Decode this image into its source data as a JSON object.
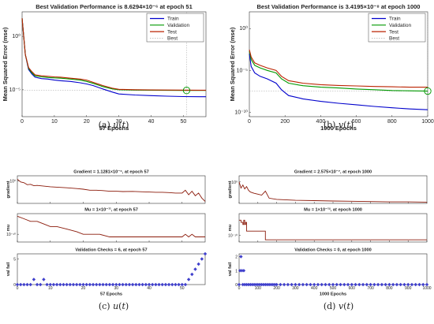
{
  "captions": [
    {
      "label": "(a)",
      "fn": "u",
      "arg": "t"
    },
    {
      "label": "(b)",
      "fn": "v",
      "arg": "t"
    },
    {
      "label": "(c)",
      "fn": "u",
      "arg": "t"
    },
    {
      "label": "(d)",
      "fn": "v",
      "arg": "t"
    }
  ],
  "colors": {
    "train": "#0000cc",
    "validation": "#009900",
    "test": "#bb2200",
    "best": "#009900",
    "best_line": "#a0a0a0",
    "gradient": "#8b1a0a",
    "checks": "#4040cc"
  },
  "chart_data": [
    {
      "id": "perf_u",
      "type": "line",
      "title": "Best Validation Performance is 8.6294×10⁻⁶ at epoch 51",
      "xlabel": "57 Epochs",
      "ylabel": "Mean Squared Error  (mse)",
      "yscale": "log",
      "xlim": [
        0,
        57
      ],
      "ylim": [
        3e-08,
        200
      ],
      "xticks": [
        0,
        10,
        20,
        30,
        40,
        50
      ],
      "yticks": [
        {
          "v": 1,
          "l": "10⁰"
        },
        {
          "v": 1e-05,
          "l": "10⁻⁵"
        }
      ],
      "legend": {
        "position": "top-right",
        "entries": [
          "Train",
          "Validation",
          "Test",
          "Best"
        ]
      },
      "best": {
        "x": 51,
        "y": 8.6294e-06
      },
      "series": [
        {
          "name": "Train",
          "color_key": "train",
          "x": [
            0,
            1,
            2,
            3,
            4,
            6,
            8,
            10,
            12,
            15,
            18,
            20,
            22,
            25,
            28,
            30,
            35,
            40,
            45,
            50,
            55,
            57
          ],
          "y": [
            50,
            0.02,
            0.0008,
            0.0003,
            0.00015,
            0.00011,
            0.0001,
            8e-05,
            7e-05,
            6e-05,
            4.5e-05,
            3.5e-05,
            2.5e-05,
            1.2e-05,
            6e-06,
            4e-06,
            3.2e-06,
            2.8e-06,
            2.5e-06,
            2.3e-06,
            2.2e-06,
            2.2e-06
          ]
        },
        {
          "name": "Validation",
          "color_key": "validation",
          "x": [
            0,
            1,
            2,
            3,
            4,
            6,
            8,
            10,
            12,
            15,
            18,
            20,
            22,
            25,
            28,
            30,
            35,
            40,
            45,
            50,
            51,
            55,
            57
          ],
          "y": [
            50,
            0.02,
            0.001,
            0.0004,
            0.0002,
            0.00016,
            0.00014,
            0.00013,
            0.00012,
            0.0001,
            8e-05,
            6e-05,
            4e-05,
            2e-05,
            1.2e-05,
            1e-05,
            9.2e-06,
            9e-06,
            8.8e-06,
            8.7e-06,
            8.6e-06,
            8.6e-06,
            8.6e-06
          ]
        },
        {
          "name": "Test",
          "color_key": "test",
          "x": [
            0,
            1,
            2,
            3,
            4,
            6,
            8,
            10,
            12,
            15,
            18,
            20,
            22,
            25,
            28,
            30,
            35,
            40,
            45,
            50,
            55,
            57
          ],
          "y": [
            50,
            0.02,
            0.0012,
            0.0005,
            0.00025,
            0.0002,
            0.00018,
            0.00016,
            0.00015,
            0.00012,
            0.0001,
            8e-05,
            5e-05,
            2.5e-05,
            1.4e-05,
            1.1e-05,
            1e-05,
            9.6e-06,
            9.4e-06,
            9.2e-06,
            9.1e-06,
            9.1e-06
          ]
        }
      ]
    },
    {
      "id": "perf_v",
      "type": "line",
      "title": "Best Validation Performance is 3.4195×10⁻⁸ at epoch 1000",
      "xlabel": "1000 Epochs",
      "ylabel": "Mean Squared Error  (mse)",
      "yscale": "log",
      "xlim": [
        0,
        1000
      ],
      "ylim": [
        3e-11,
        100
      ],
      "xticks": [
        0,
        200,
        400,
        600,
        800,
        1000
      ],
      "yticks": [
        {
          "v": 1,
          "l": "10⁰"
        },
        {
          "v": 1e-05,
          "l": "10⁻⁵"
        },
        {
          "v": 1e-10,
          "l": "10⁻¹⁰"
        }
      ],
      "legend": {
        "position": "top-right",
        "entries": [
          "Train",
          "Validation",
          "Test",
          "Best"
        ]
      },
      "best": {
        "x": 1000,
        "y": 3.4195e-08
      },
      "series": [
        {
          "name": "Train",
          "color_key": "train",
          "x": [
            0,
            10,
            30,
            60,
            100,
            150,
            180,
            220,
            300,
            400,
            500,
            600,
            700,
            800,
            900,
            1000
          ],
          "y": [
            0.001,
            3e-05,
            5e-06,
            2e-06,
            1e-06,
            3e-07,
            5e-08,
            1e-08,
            4e-09,
            2e-09,
            1.2e-09,
            8e-10,
            5e-10,
            3.5e-10,
            2.5e-10,
            2e-10
          ]
        },
        {
          "name": "Validation",
          "color_key": "validation",
          "x": [
            0,
            10,
            30,
            60,
            100,
            150,
            180,
            220,
            300,
            400,
            500,
            600,
            700,
            800,
            900,
            1000
          ],
          "y": [
            0.002,
            0.0002,
            4e-05,
            2e-05,
            1e-05,
            5e-06,
            1e-06,
            3e-07,
            1.5e-07,
            1e-07,
            8e-08,
            6e-08,
            5e-08,
            4e-08,
            3.7e-08,
            3.4e-08
          ]
        },
        {
          "name": "Test",
          "color_key": "test",
          "x": [
            0,
            10,
            30,
            60,
            100,
            150,
            180,
            220,
            300,
            400,
            500,
            600,
            700,
            800,
            900,
            1000
          ],
          "y": [
            0.003,
            0.0004,
            8e-05,
            4e-05,
            2e-05,
            1e-05,
            2e-06,
            6e-07,
            3e-07,
            2e-07,
            1.6e-07,
            1.4e-07,
            1.2e-07,
            1.1e-07,
            1e-07,
            1e-07
          ]
        }
      ]
    },
    {
      "id": "state_u",
      "type": "line",
      "xlabel": "57 Epochs",
      "xlim": [
        0,
        57
      ],
      "xticks": [
        0,
        10,
        20,
        30,
        40,
        50
      ],
      "panels": [
        {
          "title": "Gradient = 1.1281×10⁻⁶, at epoch 57",
          "ylabel": "gradient",
          "yscale": "log",
          "ylim": [
            3e-07,
            30
          ],
          "yticks": [
            {
              "v": 1,
              "l": "10⁰"
            }
          ],
          "style": "line",
          "color_key": "gradient",
          "x": [
            0,
            1,
            2,
            3,
            4,
            5,
            6,
            8,
            10,
            12,
            15,
            18,
            20,
            22,
            24,
            26,
            28,
            30,
            32,
            35,
            38,
            40,
            42,
            44,
            46,
            48,
            50,
            51,
            52,
            53,
            54,
            55,
            56,
            57
          ],
          "y": [
            3,
            0.5,
            0.3,
            0.08,
            0.1,
            0.04,
            0.05,
            0.03,
            0.02,
            0.015,
            0.01,
            0.006,
            0.004,
            0.002,
            0.002,
            0.0015,
            0.001,
            0.001,
            0.0008,
            0.0009,
            0.0007,
            0.0006,
            0.0005,
            0.0005,
            0.0004,
            0.0003,
            0.0003,
            0.002,
            0.0001,
            0.001,
            5e-05,
            0.0003,
            1e-05,
            1.1281e-06
          ]
        },
        {
          "title": "Mu = 1×10⁻¹¹, at epoch 57",
          "ylabel": "mu",
          "yscale": "log",
          "ylim": [
            1e-13,
            0.01
          ],
          "yticks": [
            {
              "v": 1e-10,
              "l": "10⁻¹⁰"
            }
          ],
          "style": "line",
          "color_key": "gradient",
          "x": [
            0,
            2,
            4,
            6,
            8,
            10,
            12,
            15,
            18,
            20,
            22,
            25,
            28,
            30,
            32,
            35,
            38,
            40,
            44,
            48,
            50,
            51,
            52,
            53,
            54,
            55,
            56,
            57
          ],
          "y": [
            0.001,
            0.0001,
            1e-05,
            1e-05,
            1e-06,
            1e-07,
            1e-07,
            1e-08,
            1e-09,
            1e-10,
            1e-10,
            1e-10,
            1e-11,
            1e-11,
            1e-11,
            1e-11,
            1e-11,
            1e-11,
            1e-11,
            1e-11,
            1e-11,
            1e-10,
            1e-11,
            1e-10,
            1e-11,
            1e-11,
            1e-11,
            1e-11
          ]
        },
        {
          "title": "Validation Checks = 6, at epoch 57",
          "ylabel": "val fail",
          "yscale": "linear",
          "ylim": [
            0,
            6
          ],
          "yticks": [
            {
              "v": 0,
              "l": "0"
            },
            {
              "v": 5,
              "l": "5"
            }
          ],
          "style": "markers",
          "color_key": "checks",
          "x": [
            0,
            1,
            2,
            3,
            4,
            5,
            6,
            7,
            8,
            9,
            10,
            11,
            12,
            13,
            14,
            15,
            16,
            17,
            18,
            19,
            20,
            21,
            22,
            23,
            24,
            25,
            26,
            27,
            28,
            29,
            30,
            31,
            32,
            33,
            34,
            35,
            36,
            37,
            38,
            39,
            40,
            41,
            42,
            43,
            44,
            45,
            46,
            47,
            48,
            49,
            50,
            51,
            52,
            53,
            54,
            55,
            56,
            57
          ],
          "y": [
            0,
            0,
            0,
            0,
            0,
            1,
            0,
            0,
            1,
            0,
            0,
            0,
            0,
            0,
            0,
            0,
            0,
            0,
            0,
            0,
            0,
            0,
            0,
            0,
            0,
            0,
            0,
            0,
            0,
            0,
            0,
            0,
            0,
            0,
            0,
            0,
            0,
            0,
            0,
            0,
            0,
            0,
            0,
            0,
            0,
            0,
            0,
            0,
            0,
            0,
            0,
            0,
            1,
            2,
            3,
            4,
            5,
            6
          ]
        }
      ]
    },
    {
      "id": "state_v",
      "type": "line",
      "xlabel": "1000 Epochs",
      "xlim": [
        0,
        1000
      ],
      "xticks": [
        0,
        100,
        200,
        300,
        400,
        500,
        600,
        700,
        800,
        900,
        1000
      ],
      "panels": [
        {
          "title": "Gradient = 2.575×10⁻⁷, at epoch 1000",
          "ylabel": "gradient",
          "yscale": "log",
          "ylim": [
            1e-07,
            100
          ],
          "yticks": [
            {
              "v": 1,
              "l": "10⁰"
            }
          ],
          "style": "line",
          "color_key": "gradient",
          "x": [
            0,
            10,
            20,
            30,
            40,
            50,
            60,
            80,
            100,
            120,
            140,
            160,
            200,
            300,
            400,
            500,
            600,
            700,
            800,
            900,
            1000
          ],
          "y": [
            1,
            0.01,
            0.1,
            0.005,
            0.03,
            0.002,
            0.0005,
            0.0002,
            0.0001,
            5e-05,
            0.001,
            5e-06,
            2e-06,
            1e-06,
            8e-07,
            6e-07,
            5e-07,
            4e-07,
            3e-07,
            3e-07,
            2.575e-07
          ]
        },
        {
          "title": "Mu = 1×10⁻¹², at epoch 1000",
          "ylabel": "mu",
          "yscale": "log",
          "ylim": [
            1e-13,
            1
          ],
          "yticks": [
            {
              "v": 1e-10,
              "l": "10⁻¹⁰"
            }
          ],
          "style": "step",
          "color_key": "gradient",
          "x": [
            0,
            10,
            20,
            25,
            30,
            35,
            40,
            60,
            80,
            100,
            130,
            140,
            150,
            1000
          ],
          "y": [
            0.001,
            0.0001,
            1e-05,
            0.001,
            1e-05,
            0.0001,
            1e-08,
            1e-08,
            1e-08,
            1e-08,
            1e-08,
            1e-12,
            1e-12,
            1e-12
          ]
        },
        {
          "title": "Validation Checks = 0, at epoch 1000",
          "ylabel": "val fail",
          "yscale": "linear",
          "ylim": [
            0,
            2.2
          ],
          "yticks": [
            {
              "v": 0,
              "l": "0"
            },
            {
              "v": 1,
              "l": "1"
            },
            {
              "v": 2,
              "l": "2"
            }
          ],
          "style": "markers",
          "color_key": "checks",
          "x": [
            0,
            5,
            10,
            15,
            20,
            25,
            30,
            40,
            50,
            60,
            70,
            80,
            90,
            100,
            110,
            120,
            130,
            140,
            150,
            160,
            170,
            180,
            190,
            200,
            220,
            240,
            260,
            280,
            300,
            320,
            340,
            360,
            380,
            400,
            420,
            440,
            460,
            480,
            500,
            520,
            540,
            560,
            580,
            600,
            620,
            640,
            660,
            680,
            700,
            720,
            740,
            760,
            780,
            800,
            820,
            840,
            860,
            880,
            900,
            920,
            940,
            960,
            980,
            1000
          ],
          "y": [
            0,
            1,
            2,
            1,
            0,
            1,
            0,
            0,
            0,
            0,
            0,
            0,
            0,
            0,
            0,
            0,
            0,
            0,
            0,
            0,
            0,
            0,
            0,
            0,
            0,
            0,
            0,
            0,
            0,
            0,
            0,
            0,
            0,
            0,
            0,
            0,
            0,
            0,
            0,
            0,
            0,
            0,
            0,
            0,
            0,
            0,
            0,
            0,
            0,
            0,
            0,
            0,
            0,
            0,
            0,
            0,
            0,
            0,
            0,
            0,
            0,
            0,
            0,
            0
          ]
        }
      ]
    }
  ]
}
